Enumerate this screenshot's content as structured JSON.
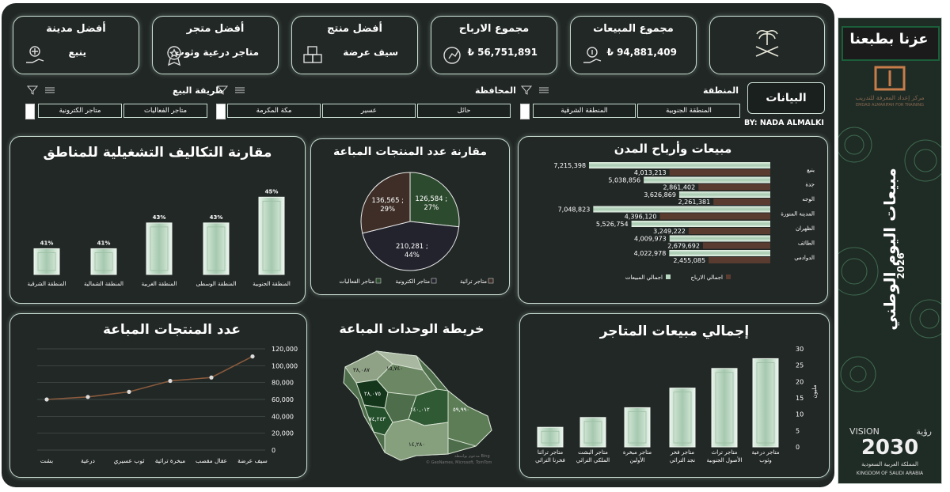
{
  "kpis": [
    {
      "title": "مجموع المبيعات",
      "value": "94,881,409 ₺",
      "icon": "money-hand-icon"
    },
    {
      "title": "مجموع الارباح",
      "value": "56,751,891 ₺",
      "icon": "coin-chart-icon"
    },
    {
      "title": "أفضل منتج",
      "value": "سيف عرضة",
      "icon": "boxes-icon"
    },
    {
      "title": "أفضل متجر",
      "value": "متاجر درعية وثوب",
      "icon": "store-badge-icon"
    },
    {
      "title": "أفضل مدينة",
      "value": "ينبع",
      "icon": "city-hand-icon"
    }
  ],
  "header": {
    "data_button": "البيانات",
    "author": "BY: NADA ALMALKI"
  },
  "slicers": {
    "region": {
      "label": "المنطقة",
      "items": [
        "المنطقة الجنوبية",
        "المنطقة الشرقية"
      ]
    },
    "province": {
      "label": "المحافظة",
      "items": [
        "حائل",
        "عسير",
        "مكة المكرمة"
      ]
    },
    "sales_method": {
      "label": "طريقة البيع",
      "items": [
        "متاجر الفعاليات",
        "متاجر الكترونية"
      ]
    }
  },
  "side_banner": {
    "slogan": "عزنا بطبعنا",
    "org_name": "مركز إعداد المعرفة للتدريب",
    "org_name_en": "EMDAD ALMARIFAH FOR TRAINING",
    "title": "مبيعات اليوم الوطني",
    "year": "2026",
    "vision_ar": "رؤية",
    "vision_en": "VISION",
    "vision_year": "2030",
    "kingdom_ar": "المملكة العربية السعودية",
    "kingdom_en": "KINGDOM OF SAUDI ARABIA"
  },
  "colors": {
    "background": "#222826",
    "accent": "#b9d7c3",
    "dark_green": "#2c4a2e",
    "brown": "#3e2e27",
    "navy": "#23232e",
    "line": "#8a5a3c"
  },
  "map": {
    "title": "خريطة الوحدات المباعة",
    "labels": [
      "٣٨,٠٨٧",
      "١٥,٧٤٠",
      "٢٨,٠٧٥",
      "٧٤,٢٤٣",
      "١٤٠,٠١٢",
      "٥٩,٩٩٠",
      "١٤,٢٨٠"
    ],
    "credit": "© GeoNames, Microsoft, TomTom",
    "powered": "مدعوم بواسطة Bing"
  },
  "chart_data": [
    {
      "id": "city-sales-profits",
      "type": "bar",
      "orientation": "horizontal",
      "title": "مبيعات وأرباح المدن",
      "categories": [
        "ينبع",
        "جدة",
        "الوجه",
        "المدينة المنورة",
        "الظهران",
        "الطائف",
        "الدوادمي"
      ],
      "series": [
        {
          "name": "اجمالي المبيعات",
          "values": [
            7215398,
            5038856,
            3626869,
            7048823,
            5526754,
            4009973,
            4022978
          ],
          "color": "#b9d7c3"
        },
        {
          "name": "اجمالي الارباح",
          "values": [
            4013213,
            2861402,
            2261381,
            4396120,
            3249222,
            2679692,
            2455085
          ],
          "color": "#5a3b30"
        }
      ],
      "data_labels": {
        "sales": [
          "7,215,398",
          "5,038,856",
          "3,626,869",
          "7,048,823",
          "5,526,754",
          "4,009,973",
          "4,022,978"
        ],
        "profits": [
          "4,013,213",
          "2,861,402",
          "2,261,381",
          "4,396,120",
          "3,249,222",
          "2,679,692",
          "2,455,085"
        ]
      },
      "legend": "bottom"
    },
    {
      "id": "products-sold-pie",
      "type": "pie",
      "title": "مقارنة عدد المنتجات المباعة",
      "categories": [
        "متاجر تراثية",
        "متاجر الكترونية",
        "متاجر الفعاليات"
      ],
      "values": [
        136565,
        210281,
        126584
      ],
      "labels": [
        "136,565 ;\n29%",
        "210,281 ;\n44%",
        "126,584 ;\n27%"
      ],
      "colors": [
        "#3e2e27",
        "#23232e",
        "#2c4a2e"
      ],
      "legend": "bottom"
    },
    {
      "id": "operating-costs",
      "type": "bar",
      "title": "مقارنة التكاليف التشغيلية للمناطق",
      "categories": [
        "المنطقة الجنوبية",
        "المنطقة الوسطى",
        "المنطقة الغربية",
        "المنطقة الشمالية",
        "المنطقة الشرقية"
      ],
      "values": [
        45,
        43,
        43,
        41,
        41
      ],
      "labels": [
        "45%",
        "43%",
        "43%",
        "41%",
        "41%"
      ],
      "ylim": [
        39,
        46
      ]
    },
    {
      "id": "products-count-line",
      "type": "line",
      "title": "عدد المنتجات المباعة",
      "categories": [
        "سيف عرضة",
        "عقال مقصب",
        "مبخرة تراثية",
        "ثوب عسيري",
        "درعية",
        "بشت"
      ],
      "values": [
        111000,
        86000,
        82000,
        69000,
        63000,
        60000
      ],
      "yticks": [
        "0",
        "20,000",
        "40,000",
        "60,000",
        "80,000",
        "100,000",
        "120,000"
      ],
      "ylim": [
        0,
        120000
      ],
      "grid": true
    },
    {
      "id": "store-sales",
      "type": "bar",
      "title": "إجمالي مبيعات المتاجر",
      "categories": [
        "متاجر درعية وثوب",
        "متاجر تراث الأصول الجنوبية",
        "متاجر فخر نجد التراثي",
        "متاجر مبخرة الأولين",
        "متاجر البشت الملكي التراثي",
        "متاجر تراثنا فخرنا التراثي"
      ],
      "values": [
        27,
        24,
        18,
        12,
        9,
        6
      ],
      "yticks": [
        "0",
        "5",
        "10",
        "15",
        "20",
        "25",
        "30"
      ],
      "ylabel": "مليون",
      "ylim": [
        0,
        30
      ]
    }
  ]
}
